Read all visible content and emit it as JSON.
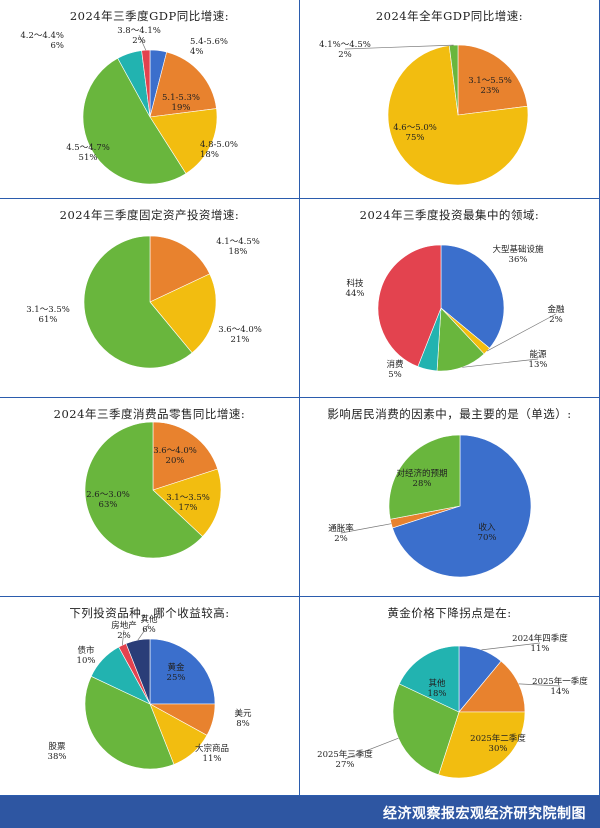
{
  "footer": {
    "text": "经济观察报宏观经济研究院制图"
  },
  "colors": {
    "blue": "#3b6fcc",
    "orange": "#e8822e",
    "yellow": "#f2bd10",
    "green": "#69b63d",
    "teal": "#22b3b0",
    "red": "#e3434f",
    "purple": "#7a3fa8",
    "navy": "#2a3d78",
    "divider": "#2b5cad",
    "footer_bg": "#2e56a2"
  },
  "chart_data": [
    {
      "type": "pie",
      "title": "2024年三季度GDP同比增速:",
      "slices": [
        {
          "label": "5.4-5.6%",
          "pct_label": "4%",
          "value": 4,
          "color": "blue"
        },
        {
          "label": "5.1-5.3%",
          "pct_label": "19%",
          "value": 19,
          "color": "orange"
        },
        {
          "label": "4.8-5.0%",
          "pct_label": "18%",
          "value": 18,
          "color": "yellow"
        },
        {
          "label": "4.5～4.7%",
          "pct_label": "51%",
          "value": 51,
          "color": "green"
        },
        {
          "label": "4.2～4.4%",
          "pct_label": "6%",
          "value": 6,
          "color": "teal"
        },
        {
          "label": "3.8～4.1%",
          "pct_label": "2%",
          "value": 2,
          "color": "red"
        }
      ]
    },
    {
      "type": "pie",
      "title": "2024年全年GDP同比增速:",
      "slices": [
        {
          "label": "3.1～5.5%",
          "pct_label": "23%",
          "value": 23,
          "color": "orange"
        },
        {
          "label": "4.6～5.0%",
          "pct_label": "75%",
          "value": 75,
          "color": "yellow"
        },
        {
          "label": "4.1%～4.5%",
          "pct_label": "2%",
          "value": 2,
          "color": "green"
        }
      ]
    },
    {
      "type": "pie",
      "title": "2024年三季度固定资产投资增速:",
      "slices": [
        {
          "label": "4.1～4.5%",
          "pct_label": "18%",
          "value": 18,
          "color": "orange"
        },
        {
          "label": "3.6～4.0%",
          "pct_label": "21%",
          "value": 21,
          "color": "yellow"
        },
        {
          "label": "3.1～3.5%",
          "pct_label": "61%",
          "value": 61,
          "color": "green"
        }
      ]
    },
    {
      "type": "pie",
      "title": "2024年三季度投资最集中的领域:",
      "slices": [
        {
          "label": "大型基础设施",
          "pct_label": "36%",
          "value": 36,
          "color": "blue"
        },
        {
          "label": "金融",
          "pct_label": "2%",
          "value": 2,
          "color": "yellow"
        },
        {
          "label": "能源",
          "pct_label": "13%",
          "value": 13,
          "color": "green"
        },
        {
          "label": "消费",
          "pct_label": "5%",
          "value": 5,
          "color": "teal"
        },
        {
          "label": "科技",
          "pct_label": "44%",
          "value": 44,
          "color": "red"
        }
      ]
    },
    {
      "type": "pie",
      "title": "2024年三季度消费品零售同比增速:",
      "slices": [
        {
          "label": "3.6～4.0%",
          "pct_label": "20%",
          "value": 20,
          "color": "orange"
        },
        {
          "label": "3.1～3.5%",
          "pct_label": "17%",
          "value": 17,
          "color": "yellow"
        },
        {
          "label": "2.6～3.0%",
          "pct_label": "63%",
          "value": 63,
          "color": "green"
        }
      ]
    },
    {
      "type": "pie",
      "title": "影响居民消费的因素中，最主要的是（单选）:",
      "slices": [
        {
          "label": "收入",
          "pct_label": "70%",
          "value": 70,
          "color": "blue"
        },
        {
          "label": "通胀率",
          "pct_label": "2%",
          "value": 2,
          "color": "orange"
        },
        {
          "label": "对经济的预期",
          "pct_label": "28%",
          "value": 28,
          "color": "green"
        }
      ]
    },
    {
      "type": "pie",
      "title": "下列投资品种，哪个收益较高:",
      "slices": [
        {
          "label": "黄金",
          "pct_label": "25%",
          "value": 25,
          "color": "blue"
        },
        {
          "label": "美元",
          "pct_label": "8%",
          "value": 8,
          "color": "orange"
        },
        {
          "label": "大宗商品",
          "pct_label": "11%",
          "value": 11,
          "color": "yellow"
        },
        {
          "label": "股票",
          "pct_label": "38%",
          "value": 38,
          "color": "green"
        },
        {
          "label": "债市",
          "pct_label": "10%",
          "value": 10,
          "color": "teal"
        },
        {
          "label": "房地产",
          "pct_label": "2%",
          "value": 2,
          "color": "red"
        },
        {
          "label": "其他",
          "pct_label": "6%",
          "value": 6,
          "color": "navy"
        }
      ]
    },
    {
      "type": "pie",
      "title": "黄金价格下降拐点是在:",
      "slices": [
        {
          "label": "2024年四季度",
          "pct_label": "11%",
          "value": 11,
          "color": "blue"
        },
        {
          "label": "2025年一季度",
          "pct_label": "14%",
          "value": 14,
          "color": "orange"
        },
        {
          "label": "2025年二季度",
          "pct_label": "30%",
          "value": 30,
          "color": "yellow"
        },
        {
          "label": "2025年三季度",
          "pct_label": "27%",
          "value": 27,
          "color": "green"
        },
        {
          "label": "其他",
          "pct_label": "18%",
          "value": 18,
          "color": "teal"
        }
      ]
    }
  ]
}
